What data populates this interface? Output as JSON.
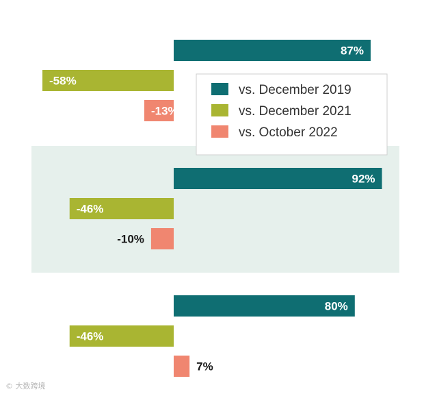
{
  "chart_data": {
    "type": "bar",
    "orientation": "horizontal",
    "categories": [
      "",
      "",
      ""
    ],
    "series": [
      {
        "name": "vs. December 2019",
        "color": "#0f6e72",
        "values": [
          87,
          92,
          80
        ]
      },
      {
        "name": "vs. December 2021",
        "color": "#a9b532",
        "values": [
          -58,
          -46,
          -46
        ]
      },
      {
        "name": "vs. October 2022",
        "color": "#f08670",
        "values": [
          -13,
          -10,
          7
        ]
      }
    ],
    "value_labels": [
      [
        "87%",
        "-58%",
        "-13%"
      ],
      [
        "92%",
        "-46%",
        "-10%"
      ],
      [
        "80%",
        "-46%",
        "7%"
      ]
    ],
    "value_suffix": "%",
    "highlighted_group": 1,
    "highlight_color": "#e6f0ec",
    "legend_position": "top-right",
    "grid": false
  },
  "watermark": "© 大数跨境"
}
